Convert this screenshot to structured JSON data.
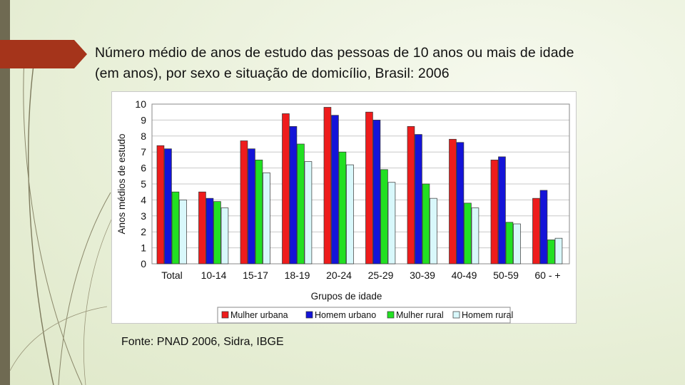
{
  "slide": {
    "title_line1": "Número médio de anos de estudo das pessoas de 10 anos ou mais de idade",
    "title_line2": "(em anos), por sexo e situação de domicílio, Brasil: 2006",
    "source": "Fonte: PNAD 2006, Sidra, IBGE"
  },
  "colors": {
    "accent_tab": "#a5341b",
    "strip": "#6f6a52"
  },
  "chart_data": {
    "type": "bar",
    "xlabel": "Grupos de idade",
    "ylabel": "Anos médios de estudo",
    "ylim": [
      0,
      10
    ],
    "yticks": [
      0,
      1,
      2,
      3,
      4,
      5,
      6,
      7,
      8,
      9,
      10
    ],
    "grid": true,
    "legend_position": "bottom",
    "categories": [
      "Total",
      "10-14",
      "15-17",
      "18-19",
      "20-24",
      "25-29",
      "30-39",
      "40-49",
      "50-59",
      "60 - +"
    ],
    "series": [
      {
        "name": "Mulher urbana",
        "color": "#ee1c1c",
        "values": [
          7.4,
          4.5,
          7.7,
          9.4,
          9.8,
          9.5,
          8.6,
          7.8,
          6.5,
          4.1
        ]
      },
      {
        "name": "Homem urbano",
        "color": "#1414d8",
        "values": [
          7.2,
          4.1,
          7.2,
          8.6,
          9.3,
          9.0,
          8.1,
          7.6,
          6.7,
          4.6
        ]
      },
      {
        "name": "Mulher rural",
        "color": "#22e022",
        "values": [
          4.5,
          3.9,
          6.5,
          7.5,
          7.0,
          5.9,
          5.0,
          3.8,
          2.6,
          1.5
        ]
      },
      {
        "name": "Homem rural",
        "color": "#d9f8fb",
        "values": [
          4.0,
          3.5,
          5.7,
          6.4,
          6.2,
          5.1,
          4.1,
          3.5,
          2.5,
          1.6
        ]
      }
    ]
  }
}
